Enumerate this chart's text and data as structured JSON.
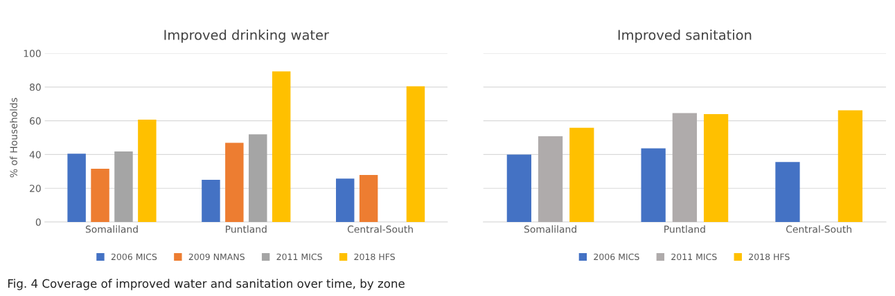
{
  "chart_data": [
    {
      "type": "bar",
      "title": "Improved drinking water",
      "ylabel": "% of Households",
      "categories": [
        "Somaliland",
        "Puntland",
        "Central-South"
      ],
      "series": [
        {
          "name": "2006 MICS",
          "color": "#4472c4",
          "values": [
            40.5,
            25,
            25.7
          ]
        },
        {
          "name": "2009 NMANS",
          "color": "#ed7d31",
          "values": [
            31.6,
            46.9,
            27.9
          ]
        },
        {
          "name": "2011 MICS",
          "color": "#a5a5a5",
          "values": [
            41.8,
            52,
            null
          ]
        },
        {
          "name": "2018 HFS",
          "color": "#ffc000",
          "values": [
            60.7,
            89.3,
            80.4
          ]
        }
      ],
      "ylim": [
        0,
        100
      ],
      "yticks": [
        0,
        20,
        40,
        60,
        80,
        100
      ],
      "grid": "y",
      "legend": "bottom",
      "annotations": [
        "Fig. 4 Coverage of improved water and sanitation over time, by zone"
      ]
    },
    {
      "type": "bar",
      "title": "Improved sanitation",
      "categories": [
        "Somaliland",
        "Puntland",
        "Central-South"
      ],
      "series": [
        {
          "name": "2006 MICS",
          "color": "#4472c4",
          "values": [
            40,
            43.7,
            35.6
          ]
        },
        {
          "name": "2011 MICS",
          "color": "#afabab",
          "values": [
            50.8,
            64.6,
            null
          ]
        },
        {
          "name": "2018 HFS",
          "color": "#ffc000",
          "values": [
            55.8,
            63.9,
            66.2
          ]
        }
      ],
      "ylim": [
        0,
        100
      ],
      "yticks": [
        0,
        20,
        40,
        60,
        80,
        100
      ],
      "grid": "y",
      "legend": "bottom",
      "tick_labels": "x"
    }
  ]
}
